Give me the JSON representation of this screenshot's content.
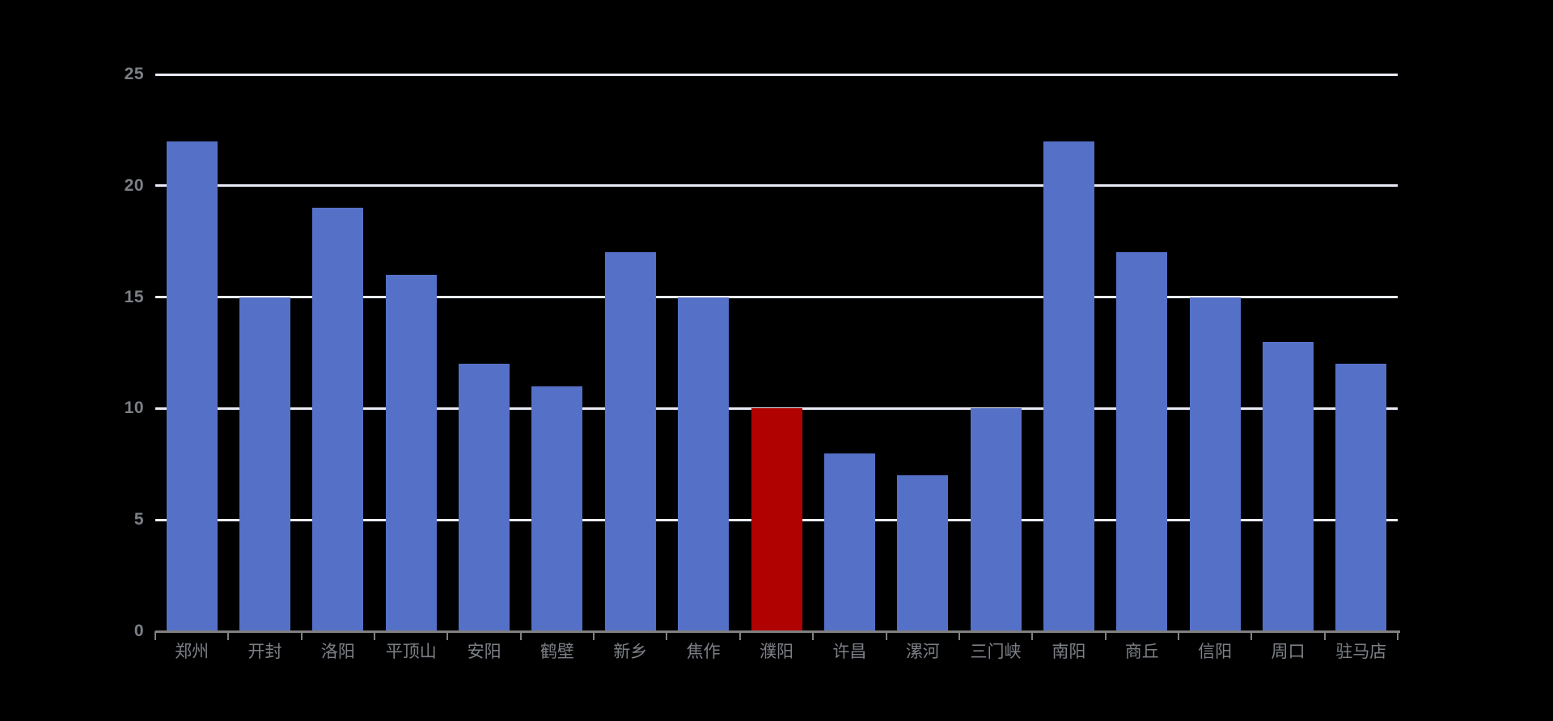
{
  "chart_data": {
    "type": "bar",
    "title": "",
    "xlabel": "",
    "ylabel": "",
    "categories": [
      "郑州",
      "开封",
      "洛阳",
      "平顶山",
      "安阳",
      "鹤壁",
      "新乡",
      "焦作",
      "濮阳",
      "许昌",
      "漯河",
      "三门峡",
      "南阳",
      "商丘",
      "信阳",
      "周口",
      "驻马店"
    ],
    "values": [
      22,
      15,
      19,
      16,
      12,
      11,
      17,
      15,
      10,
      8,
      7,
      10,
      22,
      17,
      15,
      13,
      12
    ],
    "highlight_index": 8,
    "highlighted_category": "濮阳",
    "ylim": [
      0,
      25
    ],
    "yticks": [
      0,
      5,
      10,
      15,
      20,
      25
    ],
    "ytick_labels": [
      "0",
      "5",
      "10",
      "15",
      "20",
      "25"
    ],
    "grid": true,
    "legend_position": "none",
    "colors": {
      "background": "#000000",
      "bar": "#5571C7",
      "highlight_bar": "#B00200",
      "gridline": "#E9ECF6",
      "axis_line": "#808080",
      "tick_label": "#7C8086"
    }
  }
}
